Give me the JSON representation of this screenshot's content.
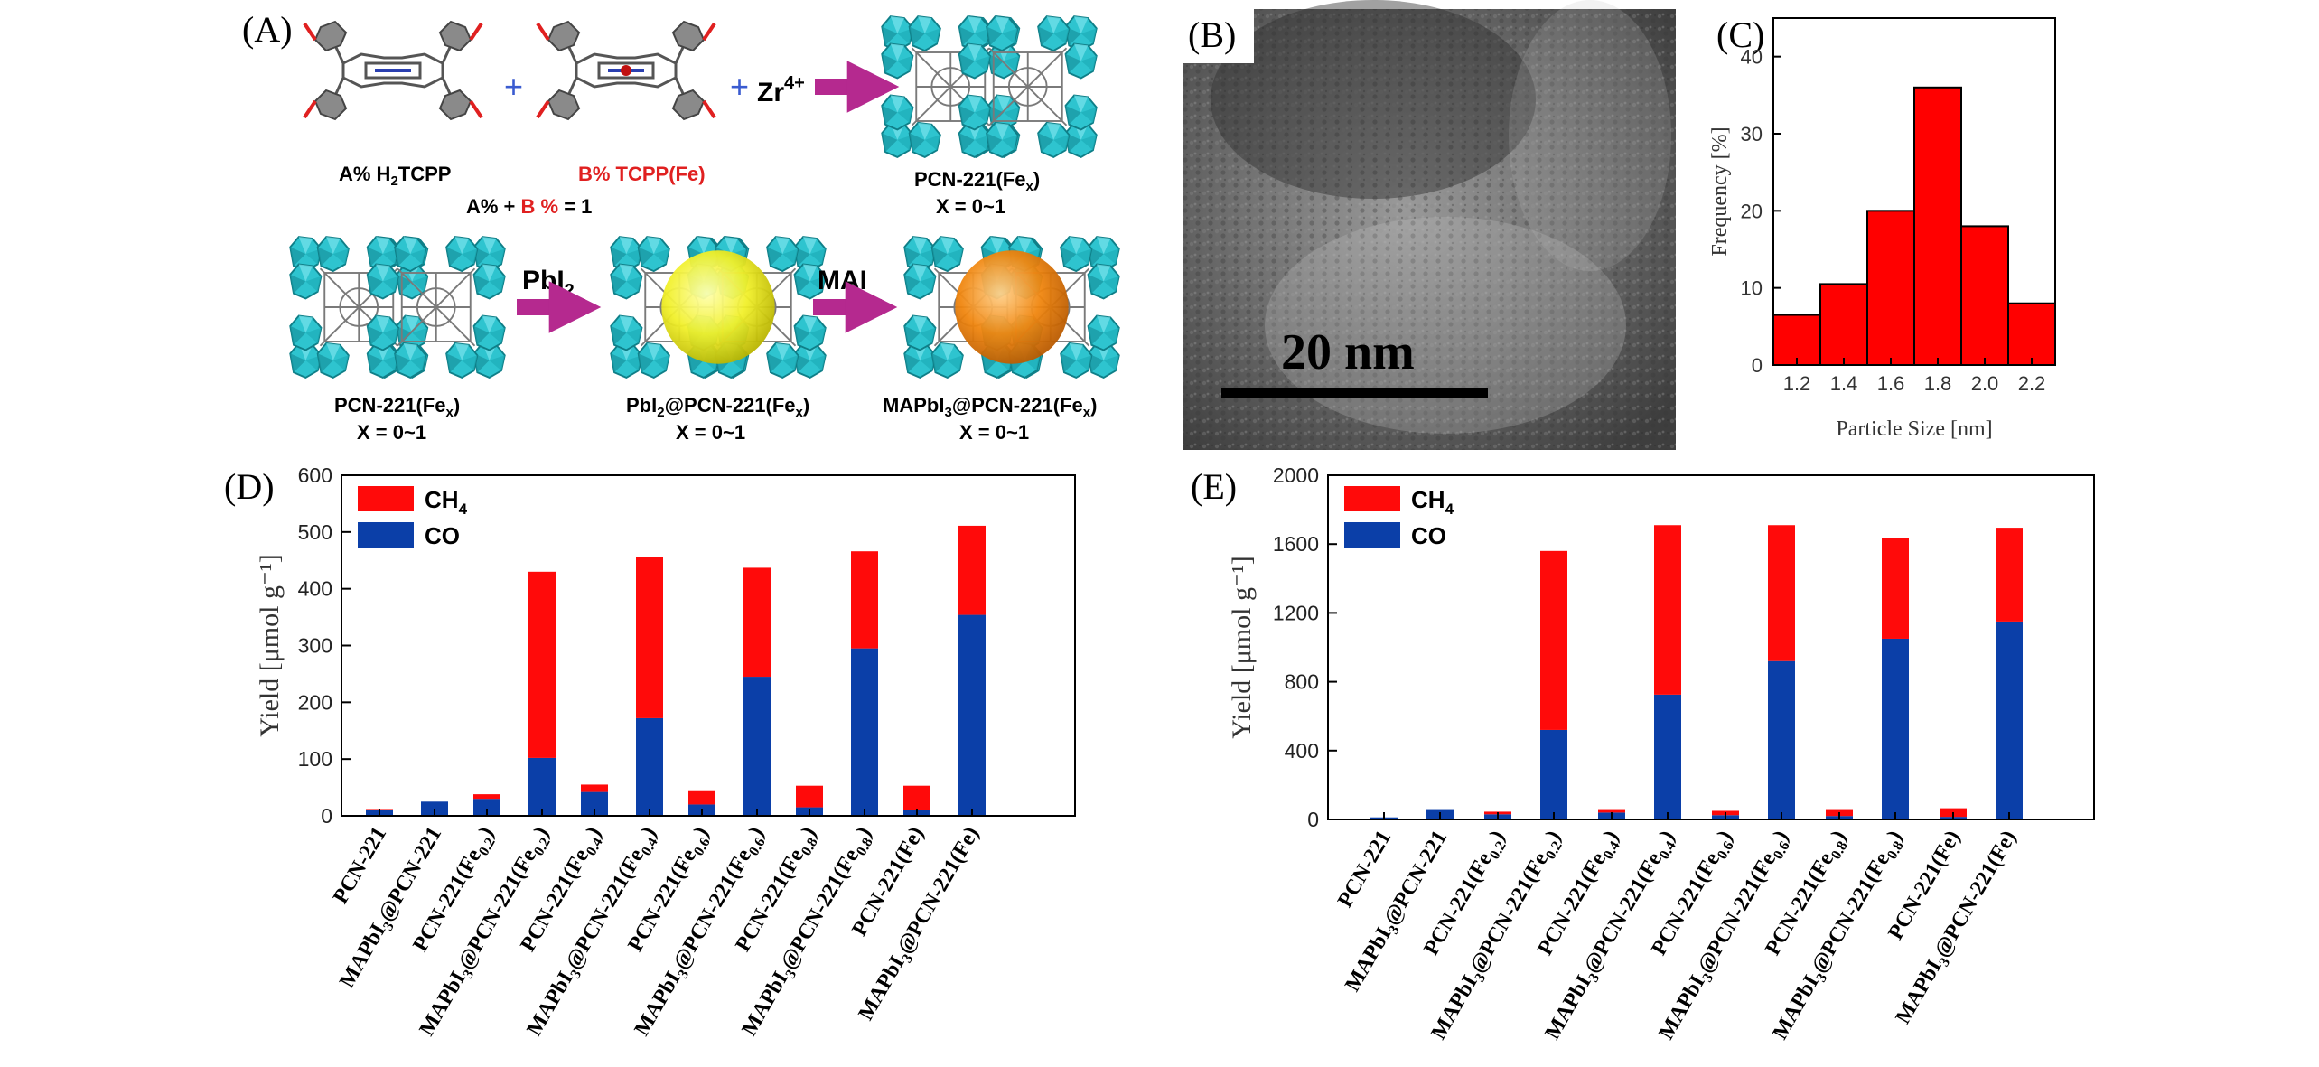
{
  "panels": {
    "A": {
      "label": "(A)",
      "row1": {
        "plus_1": "+",
        "plus_2": "+",
        "zr_base": "Zr",
        "zr_sup": "4+",
        "a_label_pre": "A% H",
        "a_label_sub": "2",
        "a_label_post": "TCPP",
        "b_label": "B% TCPP(Fe)",
        "sum_A": "A% + ",
        "sum_B": "B %",
        "sum_rest": " = 1",
        "product_pre": "PCN-221(Fe",
        "product_sub": "x",
        "product_post": ")",
        "product_x": "X = 0~1"
      },
      "row2": {
        "step1_base": "PbI",
        "step1_sub": "2",
        "step2": "MAI",
        "c1_pre": "PCN-221(Fe",
        "c1_sub": "x",
        "c1_post": ")",
        "c1_x": "X = 0~1",
        "c2_pre1": "PbI",
        "c2_sub1": "2",
        "c2_mid": "@PCN-221(Fe",
        "c2_sub2": "x",
        "c2_post": ")",
        "c2_x": "X = 0~1",
        "c3_pre1": "MAPbI",
        "c3_sub1": "3",
        "c3_mid": "@PCN-221(Fe",
        "c3_sub2": "x",
        "c3_post": ")",
        "c3_x": "X = 0~1"
      },
      "colors": {
        "arrow": "#b5298f",
        "cluster": "#2ec4cf",
        "ball_yellow": "#f1f02a",
        "ball_orange": "#f0860f",
        "linker": "#6d6d6d",
        "carboxyl_red": "#e02020"
      }
    },
    "B": {
      "label": "(B)",
      "scale_text": "20 nm"
    },
    "E_label": "(E)",
    "D_label": "(D)",
    "C_label": "(C)"
  },
  "chart_data": [
    {
      "id": "C",
      "type": "bar",
      "xlabel": "Particle Size [nm]",
      "ylabel": "Frequency [%]",
      "bin_edges": [
        1.1,
        1.3,
        1.5,
        1.7,
        1.9,
        2.1,
        2.3
      ],
      "values": [
        6.5,
        10.5,
        20,
        36,
        18,
        8
      ],
      "xticks": [
        "1.2",
        "1.4",
        "1.6",
        "1.8",
        "2.0",
        "2.2"
      ],
      "xtick_values": [
        1.2,
        1.4,
        1.6,
        1.8,
        2.0,
        2.2
      ],
      "yticks": [
        "0",
        "10",
        "20",
        "30",
        "40"
      ],
      "ytick_values": [
        0,
        10,
        20,
        30,
        40
      ],
      "xlim": [
        1.1,
        2.3
      ],
      "ylim": [
        0,
        45
      ],
      "colors": {
        "bar": "#ff0000"
      }
    },
    {
      "id": "D",
      "type": "bar",
      "stacked": true,
      "ylabel": "Yield [μmol g⁻¹]",
      "categories": [
        "PCN-221",
        "MAPbI3@PCN-221",
        "PCN-221(Fe0.2)",
        "MAPbI3@PCN-221(Fe0.2)",
        "PCN-221(Fe0.4)",
        "MAPbI3@PCN-221(Fe0.4)",
        "PCN-221(Fe0.6)",
        "MAPbI3@PCN-221(Fe0.6)",
        "PCN-221(Fe0.8)",
        "MAPbI3@PCN-221(Fe0.8)",
        "PCN-221(Fe)",
        "MAPbI3@PCN-221(Fe)"
      ],
      "series": [
        {
          "name": "CO",
          "values": [
            10,
            25,
            30,
            102,
            42,
            172,
            20,
            245,
            15,
            295,
            10,
            354
          ],
          "color": "#0b3fa8"
        },
        {
          "name": "CH4",
          "values": [
            2,
            0,
            8,
            328,
            13,
            284,
            25,
            192,
            38,
            171,
            43,
            157
          ],
          "color": "#ff0a0a"
        }
      ],
      "yticks": [
        "0",
        "100",
        "200",
        "300",
        "400",
        "500",
        "600"
      ],
      "ytick_values": [
        0,
        100,
        200,
        300,
        400,
        500,
        600
      ],
      "ylim": [
        0,
        600
      ],
      "legend": "top-left"
    },
    {
      "id": "E",
      "type": "bar",
      "stacked": true,
      "ylabel": "Yield [μmol g⁻¹]",
      "categories": [
        "PCN-221",
        "MAPbI3@PCN-221",
        "PCN-221(Fe0.2)",
        "MAPbI3@PCN-221(Fe0.2)",
        "PCN-221(Fe0.4)",
        "MAPbI3@PCN-221(Fe0.4)",
        "PCN-221(Fe0.6)",
        "MAPbI3@PCN-221(Fe0.6)",
        "PCN-221(Fe0.8)",
        "MAPbI3@PCN-221(Fe0.8)",
        "PCN-221(Fe)",
        "MAPbI3@PCN-221(Fe)"
      ],
      "series": [
        {
          "name": "CO",
          "values": [
            12,
            60,
            30,
            520,
            40,
            725,
            25,
            920,
            20,
            1050,
            15,
            1150
          ],
          "color": "#0b3fa8"
        },
        {
          "name": "CH4",
          "values": [
            0,
            0,
            15,
            1040,
            20,
            985,
            25,
            790,
            40,
            585,
            50,
            545
          ],
          "color": "#ff0a0a"
        }
      ],
      "yticks": [
        "0",
        "400",
        "800",
        "1200",
        "1600",
        "2000"
      ],
      "ytick_values": [
        0,
        400,
        800,
        1200,
        1600,
        2000
      ],
      "ylim": [
        0,
        2000
      ],
      "legend": "top-left"
    }
  ],
  "cat_labels": [
    {
      "a": "PCN-221",
      "b": "",
      "c": ""
    },
    {
      "a": "MAPbI",
      "b": "3",
      "c": "@PCN-221"
    },
    {
      "a": "PCN-221(Fe",
      "b": "0.2",
      "c": ")"
    },
    {
      "a": "MAPbI",
      "b": "3",
      "c": "@PCN-221(Fe",
      "d": "0.2",
      "e": ")"
    },
    {
      "a": "PCN-221(Fe",
      "b": "0.4",
      "c": ")"
    },
    {
      "a": "MAPbI",
      "b": "3",
      "c": "@PCN-221(Fe",
      "d": "0.4",
      "e": ")"
    },
    {
      "a": "PCN-221(Fe",
      "b": "0.6",
      "c": ")"
    },
    {
      "a": "MAPbI",
      "b": "3",
      "c": "@PCN-221(Fe",
      "d": "0.6",
      "e": ")"
    },
    {
      "a": "PCN-221(Fe",
      "b": "0.8",
      "c": ")"
    },
    {
      "a": "MAPbI",
      "b": "3",
      "c": "@PCN-221(Fe",
      "d": "0.8",
      "e": ")"
    },
    {
      "a": "PCN-221(Fe)",
      "b": "",
      "c": ""
    },
    {
      "a": "MAPbI",
      "b": "3",
      "c": "@PCN-221(Fe)"
    }
  ],
  "legend_text": {
    "ch4_base": "CH",
    "ch4_sub": "4",
    "co": "CO"
  }
}
